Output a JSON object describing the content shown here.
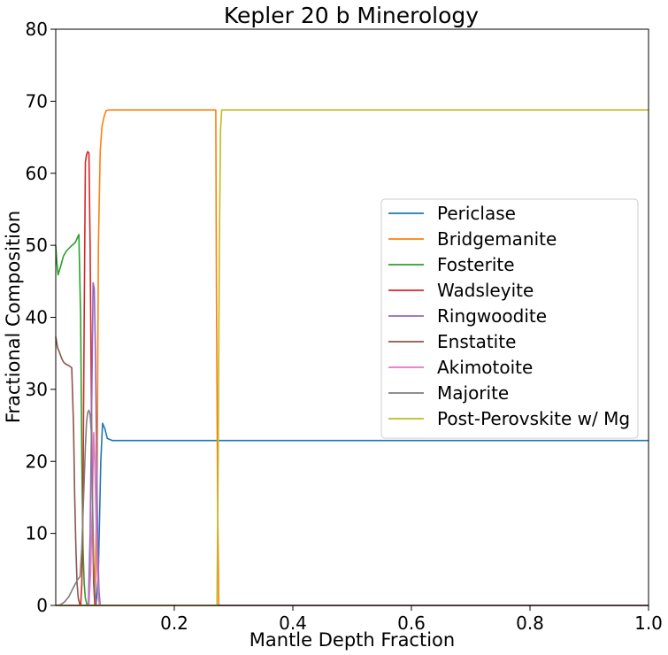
{
  "chart_data": {
    "type": "line",
    "title": "Kepler 20 b Minerology",
    "xlabel": "Mantle Depth Fraction",
    "ylabel": "Fractional Composition",
    "xlim": [
      0.0,
      1.0
    ],
    "ylim": [
      0,
      80
    ],
    "xticks": [
      0.2,
      0.4,
      0.6,
      0.8,
      1.0
    ],
    "xtick_labels": [
      "0.2",
      "0.4",
      "0.6",
      "0.8",
      "1.0"
    ],
    "yticks": [
      0,
      10,
      20,
      30,
      40,
      50,
      60,
      70,
      80
    ],
    "ytick_labels": [
      "0",
      "10",
      "20",
      "30",
      "40",
      "50",
      "60",
      "70",
      "80"
    ],
    "grid": false,
    "legend_position": "center-right",
    "series": [
      {
        "name": "Periclase",
        "color": "#1f77b4",
        "x": [
          0.0,
          0.068,
          0.072,
          0.076,
          0.079,
          0.083,
          0.087,
          0.095,
          0.12,
          1.0
        ],
        "y": [
          0,
          0,
          5,
          20,
          25.3,
          24.5,
          23.2,
          22.9,
          22.9,
          22.9
        ]
      },
      {
        "name": "Bridgemanite",
        "color": "#ff7f0e",
        "x": [
          0.0,
          0.066,
          0.07,
          0.072,
          0.075,
          0.078,
          0.082,
          0.085,
          0.09,
          0.1,
          0.27,
          0.271,
          0.273,
          0.275,
          0.277,
          1.0
        ],
        "y": [
          0,
          0,
          20,
          50,
          63,
          66.5,
          68,
          68.7,
          68.8,
          68.8,
          68.8,
          45,
          15,
          0,
          0,
          0
        ]
      },
      {
        "name": "Fosterite",
        "color": "#2ca02c",
        "x": [
          0.0,
          0.002,
          0.004,
          0.008,
          0.013,
          0.018,
          0.025,
          0.033,
          0.039,
          0.042,
          0.044,
          0.046,
          0.048,
          0.05,
          0.053,
          0.056,
          0.06,
          1.0
        ],
        "y": [
          50,
          47.5,
          45.9,
          47,
          48.5,
          49.2,
          49.8,
          50.4,
          51.5,
          40,
          20,
          8,
          3,
          1,
          0,
          0,
          0,
          0
        ]
      },
      {
        "name": "Wadsleyite",
        "color": "#d62728",
        "x": [
          0.0,
          0.042,
          0.044,
          0.046,
          0.048,
          0.05,
          0.052,
          0.054,
          0.056,
          0.058,
          0.06,
          0.062,
          0.064,
          0.066,
          1.0
        ],
        "y": [
          0,
          0,
          3,
          15,
          40,
          61.5,
          62.6,
          63,
          62.8,
          50,
          30,
          12,
          3,
          0,
          0
        ]
      },
      {
        "name": "Ringwoodite",
        "color": "#9467bd",
        "x": [
          0.0,
          0.055,
          0.058,
          0.061,
          0.063,
          0.065,
          0.067,
          0.069,
          0.071,
          0.073,
          0.075,
          1.0
        ],
        "y": [
          0,
          0,
          10,
          30,
          44.8,
          44,
          35,
          20,
          8,
          2,
          0,
          0
        ]
      },
      {
        "name": "Enstatite",
        "color": "#8c564b",
        "x": [
          0.0,
          0.003,
          0.006,
          0.01,
          0.013,
          0.017,
          0.022,
          0.027,
          0.03,
          0.032,
          0.034,
          0.036,
          0.038,
          0.041,
          0.044,
          1.0
        ],
        "y": [
          37.3,
          35.8,
          35.2,
          34.3,
          33.8,
          33.5,
          33.3,
          33.0,
          25,
          15,
          8,
          3,
          1,
          0,
          0,
          0
        ]
      },
      {
        "name": "Akimotoite",
        "color": "#e377c2",
        "x": [
          0.0,
          0.056,
          0.059,
          0.062,
          0.064,
          0.066,
          0.068,
          0.07,
          0.072,
          0.074,
          1.0
        ],
        "y": [
          0,
          0,
          5,
          15,
          24,
          20,
          12,
          5,
          1,
          0,
          0
        ]
      },
      {
        "name": "Majorite",
        "color": "#7f7f7f",
        "x": [
          0.0,
          0.008,
          0.015,
          0.022,
          0.028,
          0.033,
          0.037,
          0.041,
          0.044,
          0.047,
          0.05,
          0.052,
          0.054,
          0.056,
          0.058,
          0.06,
          0.062,
          0.064,
          0.066,
          0.068,
          1.0
        ],
        "y": [
          0,
          0.1,
          0.5,
          1.2,
          2.2,
          3.0,
          3.6,
          4.0,
          8,
          15,
          22,
          25.5,
          26.8,
          27.1,
          26.5,
          24,
          15,
          6,
          2,
          0,
          0
        ]
      },
      {
        "name": "Post-Perovskite w/ Mg",
        "color": "#bcbd22",
        "x": [
          0.0,
          0.272,
          0.274,
          0.276,
          0.278,
          0.28,
          1.0
        ],
        "y": [
          0,
          0,
          20,
          50,
          66,
          68.8,
          68.8
        ]
      }
    ]
  }
}
